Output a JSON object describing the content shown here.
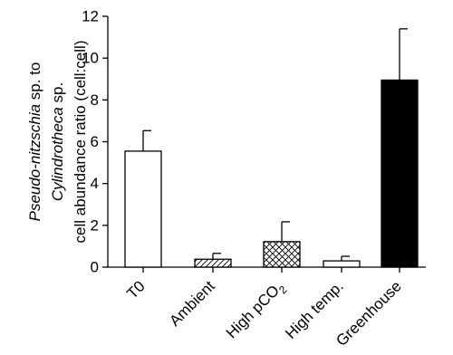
{
  "chart_data": {
    "type": "bar",
    "title": "",
    "ylabel_lines": [
      {
        "parts": [
          {
            "text": "Pseudo-nitzschia",
            "italic": true
          },
          {
            "text": " sp. to",
            "italic": false
          }
        ]
      },
      {
        "parts": [
          {
            "text": "Cylindrotheca",
            "italic": true
          },
          {
            "text": " sp.",
            "italic": false
          }
        ]
      },
      {
        "parts": [
          {
            "text": "cell abundance ratio (cell:cell)",
            "italic": false
          }
        ]
      }
    ],
    "xlabel": "",
    "ylim": [
      0,
      12
    ],
    "yticks": [
      0,
      2,
      4,
      6,
      8,
      10,
      12
    ],
    "grid": false,
    "categories": [
      {
        "label": "T0",
        "sub": ""
      },
      {
        "label": "Ambient",
        "sub": ""
      },
      {
        "label": "High pCO",
        "sub": "2"
      },
      {
        "label": "High temp.",
        "sub": ""
      },
      {
        "label": "Greenhouse",
        "sub": ""
      }
    ],
    "values": [
      5.55,
      0.38,
      1.22,
      0.3,
      8.95
    ],
    "errors": [
      0.98,
      0.28,
      0.95,
      0.22,
      2.45
    ],
    "fills": [
      "open",
      "diagonal-hatch",
      "cross-hatch",
      "open",
      "solid"
    ],
    "colors": {
      "axis": "#000000",
      "bar_stroke": "#000000",
      "solid_fill": "#000000",
      "open_fill": "#ffffff"
    }
  }
}
